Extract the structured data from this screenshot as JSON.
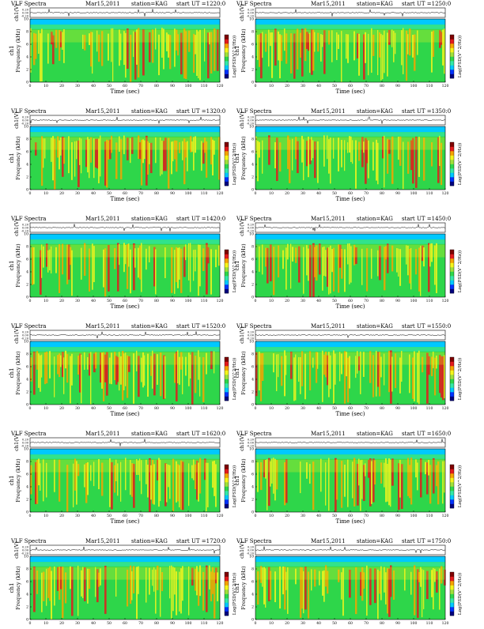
{
  "chart_data": [
    {
      "type": "heatmap",
      "title": "VLF Spectra",
      "date": "Mar15,2011",
      "station": "station=KAG",
      "start_ut": "start UT =1220:0",
      "top_ylabel": "ch1(V)",
      "top_ticks": [
        "0.20",
        "0.00",
        "-0.20"
      ],
      "freq_ylabel_channel": "ch1",
      "freq_ylabel": "Frequency (kHz)",
      "xlabel": "Time (sec)",
      "x_ticks": [
        0,
        10,
        20,
        30,
        40,
        50,
        60,
        70,
        80,
        90,
        100,
        110,
        120
      ],
      "xlim": [
        0,
        120
      ],
      "y_ticks": [
        0,
        2,
        4,
        6,
        8,
        10
      ],
      "ylim": [
        0,
        10
      ],
      "colorbar_label": "Log(PSD(V^2/Hz))",
      "colorbar_ticks": [
        "",
        "",
        "",
        ""
      ]
    },
    {
      "type": "heatmap",
      "title": "VLF Spectra",
      "date": "Mar15,2011",
      "station": "station=KAG",
      "start_ut": "start UT =1250:0",
      "top_ylabel": "ch1(V)",
      "top_ticks": [
        "0.20",
        "0.00",
        "-0.20"
      ],
      "freq_ylabel_channel": "ch1",
      "freq_ylabel": "Frequency (kHz)",
      "xlabel": "Time (sec)",
      "x_ticks": [
        0,
        10,
        20,
        30,
        40,
        50,
        60,
        70,
        80,
        90,
        100,
        110,
        120
      ],
      "xlim": [
        0,
        120
      ],
      "y_ticks": [
        0,
        2,
        4,
        6,
        8,
        10
      ],
      "ylim": [
        0,
        10
      ],
      "colorbar_label": "Log(PSD(V^2/Hz))",
      "colorbar_ticks": [
        "",
        "",
        "",
        ""
      ]
    },
    {
      "type": "heatmap",
      "title": "VLF Spectra",
      "date": "Mar15,2011",
      "station": "station=KAG",
      "start_ut": "start UT =1320:0",
      "top_ylabel": "ch1(V)",
      "top_ticks": [
        "0.20",
        "0.00",
        "-0.20"
      ],
      "freq_ylabel_channel": "ch1",
      "freq_ylabel": "Frequency (kHz)",
      "xlabel": "Time (sec)",
      "x_ticks": [
        0,
        10,
        20,
        30,
        40,
        50,
        60,
        70,
        80,
        90,
        100,
        110,
        120
      ],
      "xlim": [
        0,
        120
      ],
      "y_ticks": [
        0,
        2,
        4,
        6,
        8,
        10
      ],
      "ylim": [
        0,
        10
      ],
      "colorbar_label": "Log(PSD(V^2/Hz))",
      "colorbar_ticks": [
        "",
        "",
        "",
        ""
      ]
    },
    {
      "type": "heatmap",
      "title": "VLF Spectra",
      "date": "Mar15,2011",
      "station": "station=KAG",
      "start_ut": "start UT =1350:0",
      "top_ylabel": "ch1(V)",
      "top_ticks": [
        "0.20",
        "0.00",
        "-0.20"
      ],
      "freq_ylabel_channel": "ch1",
      "freq_ylabel": "Frequency (kHz)",
      "xlabel": "Time (sec)",
      "x_ticks": [
        0,
        10,
        20,
        30,
        40,
        50,
        60,
        70,
        80,
        90,
        100,
        110,
        120
      ],
      "xlim": [
        0,
        120
      ],
      "y_ticks": [
        0,
        2,
        4,
        6,
        8,
        10
      ],
      "ylim": [
        0,
        10
      ],
      "colorbar_label": "Log(PSD(V^2/Hz))",
      "colorbar_ticks": [
        "",
        "",
        "",
        ""
      ]
    },
    {
      "type": "heatmap",
      "title": "VLF Spectra",
      "date": "Mar15,2011",
      "station": "station=KAG",
      "start_ut": "start UT =1420:0",
      "top_ylabel": "ch1(V)",
      "top_ticks": [
        "0.20",
        "0.00",
        "-0.20"
      ],
      "freq_ylabel_channel": "ch1",
      "freq_ylabel": "Frequency (kHz)",
      "xlabel": "Time (sec)",
      "x_ticks": [
        0,
        10,
        20,
        30,
        40,
        50,
        60,
        70,
        80,
        90,
        100,
        110,
        120
      ],
      "xlim": [
        0,
        120
      ],
      "y_ticks": [
        0,
        2,
        4,
        6,
        8,
        10
      ],
      "ylim": [
        0,
        10
      ],
      "colorbar_label": "Log(PSD(V^2/Hz))",
      "colorbar_ticks": [
        "",
        "",
        "",
        ""
      ]
    },
    {
      "type": "heatmap",
      "title": "VLF Spectra",
      "date": "Mar15,2011",
      "station": "station=KAG",
      "start_ut": "start UT =1450:0",
      "top_ylabel": "ch1(V)",
      "top_ticks": [
        "0.20",
        "0.00",
        "-0.20"
      ],
      "freq_ylabel_channel": "ch1",
      "freq_ylabel": "Frequency (kHz)",
      "xlabel": "Time (sec)",
      "x_ticks": [
        0,
        10,
        20,
        30,
        40,
        50,
        60,
        70,
        80,
        90,
        100,
        110,
        120
      ],
      "xlim": [
        0,
        120
      ],
      "y_ticks": [
        0,
        2,
        4,
        6,
        8,
        10
      ],
      "ylim": [
        0,
        10
      ],
      "colorbar_label": "Log(PSD(V^2/Hz))",
      "colorbar_ticks": [
        "",
        "",
        "",
        ""
      ]
    },
    {
      "type": "heatmap",
      "title": "VLF Spectra",
      "date": "Mar15,2011",
      "station": "station=KAG",
      "start_ut": "start UT =1520:0",
      "top_ylabel": "ch1(V)",
      "top_ticks": [
        "0.20",
        "0.00",
        "-0.20"
      ],
      "freq_ylabel_channel": "ch1",
      "freq_ylabel": "Frequency (kHz)",
      "xlabel": "Time (sec)",
      "x_ticks": [
        0,
        10,
        20,
        30,
        40,
        50,
        60,
        70,
        80,
        90,
        100,
        110,
        120
      ],
      "xlim": [
        0,
        120
      ],
      "y_ticks": [
        0,
        2,
        4,
        6,
        8,
        10
      ],
      "ylim": [
        0,
        10
      ],
      "colorbar_label": "Log(PSD(V^2/Hz))",
      "colorbar_ticks": [
        "",
        "",
        "",
        ""
      ]
    },
    {
      "type": "heatmap",
      "title": "VLF Spectra",
      "date": "Mar15,2011",
      "station": "station=KAG",
      "start_ut": "start UT =1550:0",
      "top_ylabel": "ch1(V)",
      "top_ticks": [
        "0.20",
        "0.00",
        "-0.20"
      ],
      "freq_ylabel_channel": "ch1",
      "freq_ylabel": "Frequency (kHz)",
      "xlabel": "Time (sec)",
      "x_ticks": [
        0,
        10,
        20,
        30,
        40,
        50,
        60,
        70,
        80,
        90,
        100,
        110,
        120
      ],
      "xlim": [
        0,
        120
      ],
      "y_ticks": [
        0,
        2,
        4,
        6,
        8,
        10
      ],
      "ylim": [
        0,
        10
      ],
      "colorbar_label": "Log(PSD(V^2/Hz))",
      "colorbar_ticks": [
        "",
        "",
        "",
        ""
      ]
    },
    {
      "type": "heatmap",
      "title": "VLF Spectra",
      "date": "Mar15,2011",
      "station": "station=KAG",
      "start_ut": "start UT =1620:0",
      "top_ylabel": "ch1(V)",
      "top_ticks": [
        "0.20",
        "0.00",
        "-0.20"
      ],
      "freq_ylabel_channel": "ch1",
      "freq_ylabel": "Frequency (kHz)",
      "xlabel": "Time (sec)",
      "x_ticks": [
        0,
        10,
        20,
        30,
        40,
        50,
        60,
        70,
        80,
        90,
        100,
        110,
        120
      ],
      "xlim": [
        0,
        120
      ],
      "y_ticks": [
        0,
        2,
        4,
        6,
        8,
        10
      ],
      "ylim": [
        0,
        10
      ],
      "colorbar_label": "Log(PSD(V^2/Hz))",
      "colorbar_ticks": [
        "",
        "",
        "",
        ""
      ]
    },
    {
      "type": "heatmap",
      "title": "VLF Spectra",
      "date": "Mar15,2011",
      "station": "station=KAG",
      "start_ut": "start UT =1650:0",
      "top_ylabel": "ch1(V)",
      "top_ticks": [
        "0.20",
        "0.00",
        "-0.20"
      ],
      "freq_ylabel_channel": "ch1",
      "freq_ylabel": "Frequency (kHz)",
      "xlabel": "Time (sec)",
      "x_ticks": [
        0,
        10,
        20,
        30,
        40,
        50,
        60,
        70,
        80,
        90,
        100,
        110,
        120
      ],
      "xlim": [
        0,
        120
      ],
      "y_ticks": [
        0,
        2,
        4,
        6,
        8,
        10
      ],
      "ylim": [
        0,
        10
      ],
      "colorbar_label": "Log(PSD(V^2/Hz))",
      "colorbar_ticks": [
        "",
        "",
        "",
        ""
      ]
    },
    {
      "type": "heatmap",
      "title": "VLF Spectra",
      "date": "Mar15,2011",
      "station": "station=KAG",
      "start_ut": "start UT =1720:0",
      "top_ylabel": "ch1(V)",
      "top_ticks": [
        "0.20",
        "0.00",
        "-0.20"
      ],
      "freq_ylabel_channel": "ch1",
      "freq_ylabel": "Frequency (kHz)",
      "xlabel": "Time (sec)",
      "x_ticks": [
        0,
        10,
        20,
        30,
        40,
        50,
        60,
        70,
        80,
        90,
        100,
        110,
        120
      ],
      "xlim": [
        0,
        120
      ],
      "y_ticks": [
        0,
        2,
        4,
        6,
        8,
        10
      ],
      "ylim": [
        0,
        10
      ],
      "colorbar_label": "Log(PSD(V^2/Hz))",
      "colorbar_ticks": [
        "",
        "",
        "",
        ""
      ]
    },
    {
      "type": "heatmap",
      "title": "VLF Spectra",
      "date": "Mar15,2011",
      "station": "station=KAG",
      "start_ut": "start UT =1750:0",
      "top_ylabel": "ch1(V)",
      "top_ticks": [
        "0.20",
        "0.00",
        "-0.20"
      ],
      "freq_ylabel_channel": "ch1",
      "freq_ylabel": "Frequency (kHz)",
      "xlabel": "Time (sec)",
      "x_ticks": [
        0,
        10,
        20,
        30,
        40,
        50,
        60,
        70,
        80,
        90,
        100,
        110,
        120
      ],
      "xlim": [
        0,
        120
      ],
      "y_ticks": [
        0,
        2,
        4,
        6,
        8,
        10
      ],
      "ylim": [
        0,
        10
      ],
      "colorbar_label": "Log(PSD(V^2/Hz))",
      "colorbar_ticks": [
        "",
        "",
        "",
        ""
      ]
    }
  ],
  "colors": {
    "colormap": [
      "#00007f",
      "#0033ff",
      "#00c8ff",
      "#33e8a8",
      "#2ed64a",
      "#9fe03a",
      "#f5f51c",
      "#f5a300",
      "#e31a1c",
      "#7f0000"
    ],
    "trace": "#000000",
    "frame": "#000000"
  }
}
